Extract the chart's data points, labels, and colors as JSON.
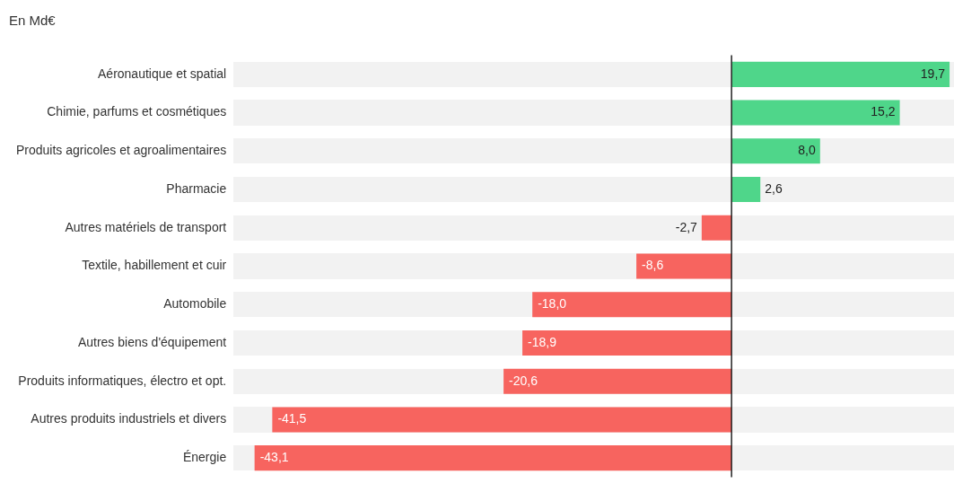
{
  "chart_data": {
    "type": "bar",
    "orientation": "horizontal",
    "title": "En Md€",
    "categories": [
      "Aéronautique et spatial",
      "Chimie, parfums et cosmétiques",
      "Produits agricoles et agroalimentaires",
      "Pharmacie",
      "Autres matériels de transport",
      "Textile, habillement et cuir",
      "Automobile",
      "Autres biens d'équipement",
      "Produits informatiques, électro et opt.",
      "Autres produits industriels et divers",
      "Énergie"
    ],
    "values": [
      19.7,
      15.2,
      8.0,
      2.6,
      -2.7,
      -8.6,
      -18.0,
      -18.9,
      -20.6,
      -41.5,
      -43.1
    ],
    "value_labels": [
      "19,7",
      "15,2",
      "8,0",
      "2,6",
      "-2,7",
      "-8,6",
      "-18,0",
      "-18,9",
      "-20,6",
      "-41,5",
      "-43,1"
    ],
    "colors": [
      "#4fd68a",
      "#4fd68a",
      "#4fd68a",
      "#4fd68a",
      "#f7645f",
      "#f7645f",
      "#f7645f",
      "#f7645f",
      "#f7645f",
      "#f7645f",
      "#f7645f"
    ],
    "xlim": [
      -45,
      20.1
    ],
    "tick_labels": "y",
    "grid": false,
    "legend": false,
    "ref_lines": [
      {
        "axis": "x",
        "value": 0,
        "color": "#222222"
      }
    ]
  }
}
